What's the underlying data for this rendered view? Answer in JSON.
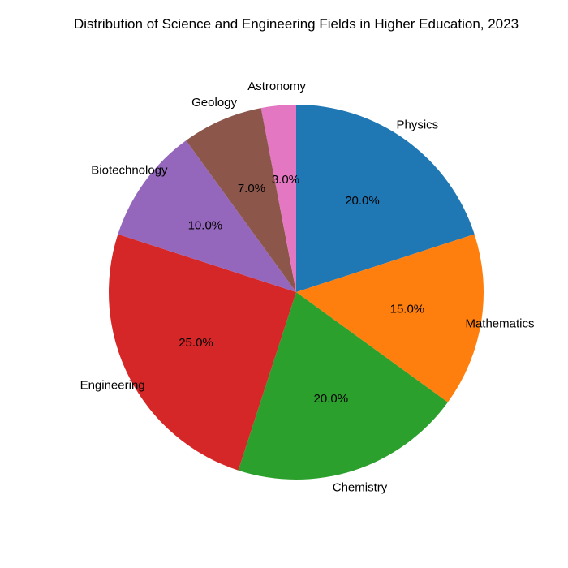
{
  "chart_data": {
    "type": "pie",
    "title": "Distribution of Science and Engineering Fields in Higher Education, 2023",
    "start_angle_deg": 90,
    "direction": "clockwise",
    "slices": [
      {
        "label": "Physics",
        "value": 20.0,
        "pct_label": "20.0%",
        "color": "#1f77b4"
      },
      {
        "label": "Mathematics",
        "value": 15.0,
        "pct_label": "15.0%",
        "color": "#ff7f0e"
      },
      {
        "label": "Chemistry",
        "value": 20.0,
        "pct_label": "20.0%",
        "color": "#2ca02c"
      },
      {
        "label": "Engineering",
        "value": 25.0,
        "pct_label": "25.0%",
        "color": "#d62728"
      },
      {
        "label": "Biotechnology",
        "value": 10.0,
        "pct_label": "10.0%",
        "color": "#9467bd"
      },
      {
        "label": "Geology",
        "value": 7.0,
        "pct_label": "7.0%",
        "color": "#8c564b"
      },
      {
        "label": "Astronomy",
        "value": 3.0,
        "pct_label": "3.0%",
        "color": "#e377c2"
      }
    ]
  }
}
